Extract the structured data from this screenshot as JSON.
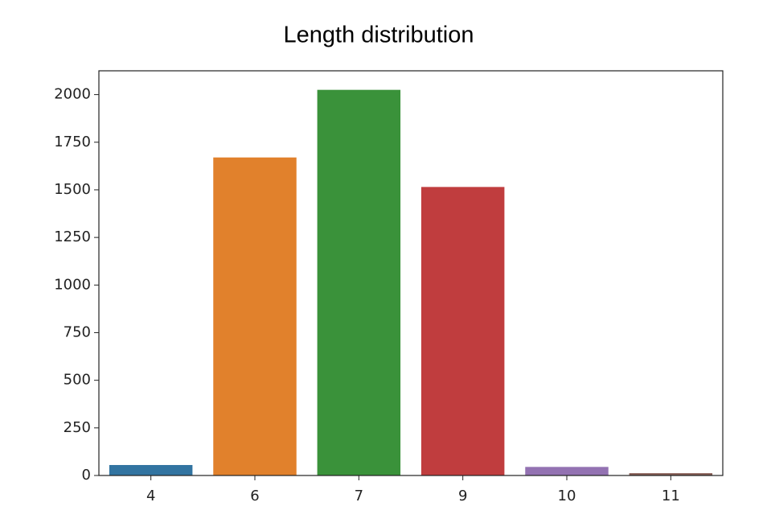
{
  "chart_data": {
    "type": "bar",
    "title": "Length distribution",
    "categories": [
      "4",
      "6",
      "7",
      "9",
      "10",
      "11"
    ],
    "values": [
      55,
      1670,
      2025,
      1515,
      45,
      12
    ],
    "colors": [
      "#3274a1",
      "#e1812c",
      "#3a923a",
      "#c03d3e",
      "#9372b2",
      "#845b53"
    ],
    "ylim": [
      0,
      2125
    ],
    "yticks": [
      0,
      250,
      500,
      750,
      1000,
      1250,
      1500,
      1750,
      2000
    ],
    "grid": false
  }
}
